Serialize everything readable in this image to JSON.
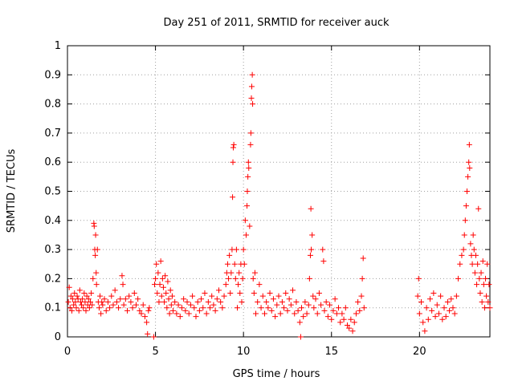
{
  "chart_data": {
    "type": "scatter",
    "title": "Day 251 of 2011, SRMTID for receiver auck",
    "xlabel": "GPS time / hours",
    "ylabel": "SRMTID / TECUs",
    "xlim": [
      0,
      24
    ],
    "ylim": [
      0,
      1
    ],
    "x_ticks": [
      0,
      5,
      10,
      15,
      20
    ],
    "x_tick_labels": [
      "0",
      "5",
      "10",
      "15",
      "20"
    ],
    "y_ticks": [
      0,
      0.1,
      0.2,
      0.3,
      0.4,
      0.5,
      0.6,
      0.7,
      0.8,
      0.9,
      1
    ],
    "y_tick_labels": [
      "0",
      "0.1",
      "0.2",
      "0.3",
      "0.4",
      "0.5",
      "0.6",
      "0.7",
      "0.8",
      "0.9",
      "1"
    ],
    "grid": true,
    "marker": "+",
    "point_color": "#ff0000",
    "series": [
      {
        "name": "SRMTID",
        "points": [
          [
            0.05,
            0.12
          ],
          [
            0.1,
            0.17
          ],
          [
            0.15,
            0.1
          ],
          [
            0.2,
            0.14
          ],
          [
            0.25,
            0.09
          ],
          [
            0.3,
            0.13
          ],
          [
            0.35,
            0.11
          ],
          [
            0.4,
            0.15
          ],
          [
            0.45,
            0.12
          ],
          [
            0.5,
            0.1
          ],
          [
            0.55,
            0.14
          ],
          [
            0.6,
            0.13
          ],
          [
            0.65,
            0.09
          ],
          [
            0.7,
            0.16
          ],
          [
            0.75,
            0.12
          ],
          [
            0.8,
            0.11
          ],
          [
            0.85,
            0.13
          ],
          [
            0.9,
            0.1
          ],
          [
            0.95,
            0.15
          ],
          [
            1.0,
            0.12
          ],
          [
            1.05,
            0.09
          ],
          [
            1.1,
            0.14
          ],
          [
            1.15,
            0.11
          ],
          [
            1.2,
            0.13
          ],
          [
            1.25,
            0.1
          ],
          [
            1.3,
            0.12
          ],
          [
            1.35,
            0.15
          ],
          [
            1.4,
            0.11
          ],
          [
            1.45,
            0.2
          ],
          [
            1.5,
            0.39
          ],
          [
            1.52,
            0.38
          ],
          [
            1.55,
            0.3
          ],
          [
            1.58,
            0.28
          ],
          [
            1.6,
            0.35
          ],
          [
            1.63,
            0.22
          ],
          [
            1.65,
            0.18
          ],
          [
            1.7,
            0.3
          ],
          [
            1.75,
            0.12
          ],
          [
            1.8,
            0.1
          ],
          [
            1.85,
            0.14
          ],
          [
            1.9,
            0.08
          ],
          [
            1.95,
            0.12
          ],
          [
            2.0,
            0.11
          ],
          [
            2.1,
            0.13
          ],
          [
            2.2,
            0.09
          ],
          [
            2.3,
            0.12
          ],
          [
            2.4,
            0.1
          ],
          [
            2.5,
            0.14
          ],
          [
            2.6,
            0.11
          ],
          [
            2.7,
            0.16
          ],
          [
            2.8,
            0.12
          ],
          [
            2.9,
            0.1
          ],
          [
            3.0,
            0.13
          ],
          [
            3.1,
            0.21
          ],
          [
            3.15,
            0.18
          ],
          [
            3.2,
            0.11
          ],
          [
            3.3,
            0.13
          ],
          [
            3.4,
            0.09
          ],
          [
            3.5,
            0.14
          ],
          [
            3.6,
            0.12
          ],
          [
            3.7,
            0.1
          ],
          [
            3.8,
            0.15
          ],
          [
            3.9,
            0.11
          ],
          [
            4.0,
            0.13
          ],
          [
            4.1,
            0.09
          ],
          [
            4.2,
            0.08
          ],
          [
            4.3,
            0.11
          ],
          [
            4.4,
            0.07
          ],
          [
            4.5,
            0.05
          ],
          [
            4.55,
            0.01
          ],
          [
            4.6,
            0.09
          ],
          [
            4.65,
            0.1
          ],
          [
            4.9,
            0.0
          ],
          [
            4.95,
            0.18
          ],
          [
            5.0,
            0.2
          ],
          [
            5.05,
            0.25
          ],
          [
            5.1,
            0.15
          ],
          [
            5.15,
            0.22
          ],
          [
            5.2,
            0.12
          ],
          [
            5.25,
            0.18
          ],
          [
            5.3,
            0.26
          ],
          [
            5.35,
            0.14
          ],
          [
            5.4,
            0.2
          ],
          [
            5.45,
            0.17
          ],
          [
            5.5,
            0.12
          ],
          [
            5.55,
            0.21
          ],
          [
            5.6,
            0.15
          ],
          [
            5.65,
            0.1
          ],
          [
            5.7,
            0.19
          ],
          [
            5.75,
            0.13
          ],
          [
            5.8,
            0.08
          ],
          [
            5.85,
            0.16
          ],
          [
            5.9,
            0.11
          ],
          [
            5.95,
            0.14
          ],
          [
            6.0,
            0.09
          ],
          [
            6.1,
            0.12
          ],
          [
            6.2,
            0.08
          ],
          [
            6.3,
            0.11
          ],
          [
            6.4,
            0.07
          ],
          [
            6.5,
            0.1
          ],
          [
            6.6,
            0.13
          ],
          [
            6.7,
            0.09
          ],
          [
            6.8,
            0.12
          ],
          [
            6.9,
            0.08
          ],
          [
            7.0,
            0.11
          ],
          [
            7.1,
            0.14
          ],
          [
            7.2,
            0.1
          ],
          [
            7.3,
            0.07
          ],
          [
            7.4,
            0.12
          ],
          [
            7.5,
            0.09
          ],
          [
            7.6,
            0.13
          ],
          [
            7.7,
            0.1
          ],
          [
            7.8,
            0.15
          ],
          [
            7.9,
            0.08
          ],
          [
            8.0,
            0.12
          ],
          [
            8.1,
            0.1
          ],
          [
            8.2,
            0.14
          ],
          [
            8.3,
            0.11
          ],
          [
            8.4,
            0.09
          ],
          [
            8.5,
            0.13
          ],
          [
            8.6,
            0.16
          ],
          [
            8.7,
            0.12
          ],
          [
            8.8,
            0.1
          ],
          [
            8.9,
            0.14
          ],
          [
            9.0,
            0.18
          ],
          [
            9.05,
            0.22
          ],
          [
            9.1,
            0.25
          ],
          [
            9.15,
            0.2
          ],
          [
            9.2,
            0.28
          ],
          [
            9.25,
            0.15
          ],
          [
            9.3,
            0.22
          ],
          [
            9.35,
            0.3
          ],
          [
            9.38,
            0.48
          ],
          [
            9.4,
            0.6
          ],
          [
            9.42,
            0.65
          ],
          [
            9.45,
            0.66
          ],
          [
            9.5,
            0.25
          ],
          [
            9.55,
            0.2
          ],
          [
            9.6,
            0.3
          ],
          [
            9.65,
            0.1
          ],
          [
            9.7,
            0.18
          ],
          [
            9.75,
            0.22
          ],
          [
            9.8,
            0.15
          ],
          [
            9.85,
            0.25
          ],
          [
            9.9,
            0.12
          ],
          [
            9.95,
            0.2
          ],
          [
            10.0,
            0.3
          ],
          [
            10.05,
            0.25
          ],
          [
            10.1,
            0.4
          ],
          [
            10.15,
            0.35
          ],
          [
            10.2,
            0.45
          ],
          [
            10.22,
            0.5
          ],
          [
            10.25,
            0.55
          ],
          [
            10.28,
            0.6
          ],
          [
            10.3,
            0.58
          ],
          [
            10.35,
            0.38
          ],
          [
            10.4,
            0.66
          ],
          [
            10.42,
            0.7
          ],
          [
            10.45,
            0.82
          ],
          [
            10.47,
            0.86
          ],
          [
            10.5,
            0.9
          ],
          [
            10.52,
            0.8
          ],
          [
            10.55,
            0.2
          ],
          [
            10.6,
            0.15
          ],
          [
            10.65,
            0.22
          ],
          [
            10.7,
            0.08
          ],
          [
            10.8,
            0.12
          ],
          [
            10.9,
            0.18
          ],
          [
            11.0,
            0.1
          ],
          [
            11.1,
            0.14
          ],
          [
            11.2,
            0.08
          ],
          [
            11.3,
            0.12
          ],
          [
            11.4,
            0.1
          ],
          [
            11.5,
            0.15
          ],
          [
            11.6,
            0.09
          ],
          [
            11.7,
            0.13
          ],
          [
            11.8,
            0.07
          ],
          [
            11.9,
            0.11
          ],
          [
            12.0,
            0.14
          ],
          [
            12.1,
            0.08
          ],
          [
            12.2,
            0.12
          ],
          [
            12.3,
            0.1
          ],
          [
            12.4,
            0.15
          ],
          [
            12.5,
            0.09
          ],
          [
            12.6,
            0.13
          ],
          [
            12.7,
            0.11
          ],
          [
            12.8,
            0.16
          ],
          [
            12.9,
            0.08
          ],
          [
            13.0,
            0.12
          ],
          [
            13.1,
            0.09
          ],
          [
            13.2,
            0.05
          ],
          [
            13.25,
            0.0
          ],
          [
            13.3,
            0.1
          ],
          [
            13.4,
            0.07
          ],
          [
            13.5,
            0.12
          ],
          [
            13.6,
            0.08
          ],
          [
            13.7,
            0.11
          ],
          [
            13.75,
            0.2
          ],
          [
            13.8,
            0.28
          ],
          [
            13.83,
            0.44
          ],
          [
            13.85,
            0.3
          ],
          [
            13.9,
            0.35
          ],
          [
            13.95,
            0.14
          ],
          [
            14.0,
            0.1
          ],
          [
            14.1,
            0.13
          ],
          [
            14.2,
            0.08
          ],
          [
            14.3,
            0.15
          ],
          [
            14.4,
            0.11
          ],
          [
            14.5,
            0.3
          ],
          [
            14.55,
            0.26
          ],
          [
            14.6,
            0.09
          ],
          [
            14.7,
            0.12
          ],
          [
            14.8,
            0.07
          ],
          [
            14.9,
            0.11
          ],
          [
            15.0,
            0.06
          ],
          [
            15.1,
            0.09
          ],
          [
            15.2,
            0.13
          ],
          [
            15.3,
            0.08
          ],
          [
            15.4,
            0.1
          ],
          [
            15.5,
            0.05
          ],
          [
            15.6,
            0.08
          ],
          [
            15.7,
            0.06
          ],
          [
            15.8,
            0.1
          ],
          [
            15.9,
            0.04
          ],
          [
            16.0,
            0.03
          ],
          [
            16.1,
            0.06
          ],
          [
            16.2,
            0.02
          ],
          [
            16.3,
            0.05
          ],
          [
            16.4,
            0.08
          ],
          [
            16.5,
            0.12
          ],
          [
            16.6,
            0.09
          ],
          [
            16.7,
            0.14
          ],
          [
            16.75,
            0.2
          ],
          [
            16.8,
            0.27
          ],
          [
            16.85,
            0.1
          ],
          [
            19.9,
            0.14
          ],
          [
            19.95,
            0.2
          ],
          [
            20.0,
            0.08
          ],
          [
            20.1,
            0.12
          ],
          [
            20.2,
            0.05
          ],
          [
            20.3,
            0.02
          ],
          [
            20.4,
            0.1
          ],
          [
            20.5,
            0.06
          ],
          [
            20.6,
            0.13
          ],
          [
            20.7,
            0.09
          ],
          [
            20.8,
            0.15
          ],
          [
            20.9,
            0.07
          ],
          [
            21.0,
            0.11
          ],
          [
            21.1,
            0.08
          ],
          [
            21.2,
            0.14
          ],
          [
            21.3,
            0.06
          ],
          [
            21.4,
            0.1
          ],
          [
            21.5,
            0.07
          ],
          [
            21.6,
            0.12
          ],
          [
            21.7,
            0.09
          ],
          [
            21.8,
            0.13
          ],
          [
            21.9,
            0.1
          ],
          [
            22.0,
            0.08
          ],
          [
            22.1,
            0.14
          ],
          [
            22.2,
            0.2
          ],
          [
            22.3,
            0.25
          ],
          [
            22.4,
            0.28
          ],
          [
            22.5,
            0.3
          ],
          [
            22.55,
            0.35
          ],
          [
            22.6,
            0.4
          ],
          [
            22.65,
            0.45
          ],
          [
            22.7,
            0.5
          ],
          [
            22.75,
            0.55
          ],
          [
            22.8,
            0.6
          ],
          [
            22.83,
            0.66
          ],
          [
            22.85,
            0.58
          ],
          [
            22.9,
            0.32
          ],
          [
            22.95,
            0.28
          ],
          [
            23.0,
            0.25
          ],
          [
            23.05,
            0.35
          ],
          [
            23.1,
            0.3
          ],
          [
            23.15,
            0.22
          ],
          [
            23.2,
            0.28
          ],
          [
            23.25,
            0.18
          ],
          [
            23.3,
            0.25
          ],
          [
            23.35,
            0.44
          ],
          [
            23.4,
            0.2
          ],
          [
            23.45,
            0.15
          ],
          [
            23.5,
            0.22
          ],
          [
            23.55,
            0.12
          ],
          [
            23.6,
            0.26
          ],
          [
            23.65,
            0.18
          ],
          [
            23.7,
            0.1
          ],
          [
            23.75,
            0.2
          ],
          [
            23.8,
            0.14
          ],
          [
            23.85,
            0.25
          ],
          [
            23.9,
            0.12
          ],
          [
            23.95,
            0.18
          ],
          [
            24.0,
            0.1
          ]
        ]
      }
    ]
  }
}
